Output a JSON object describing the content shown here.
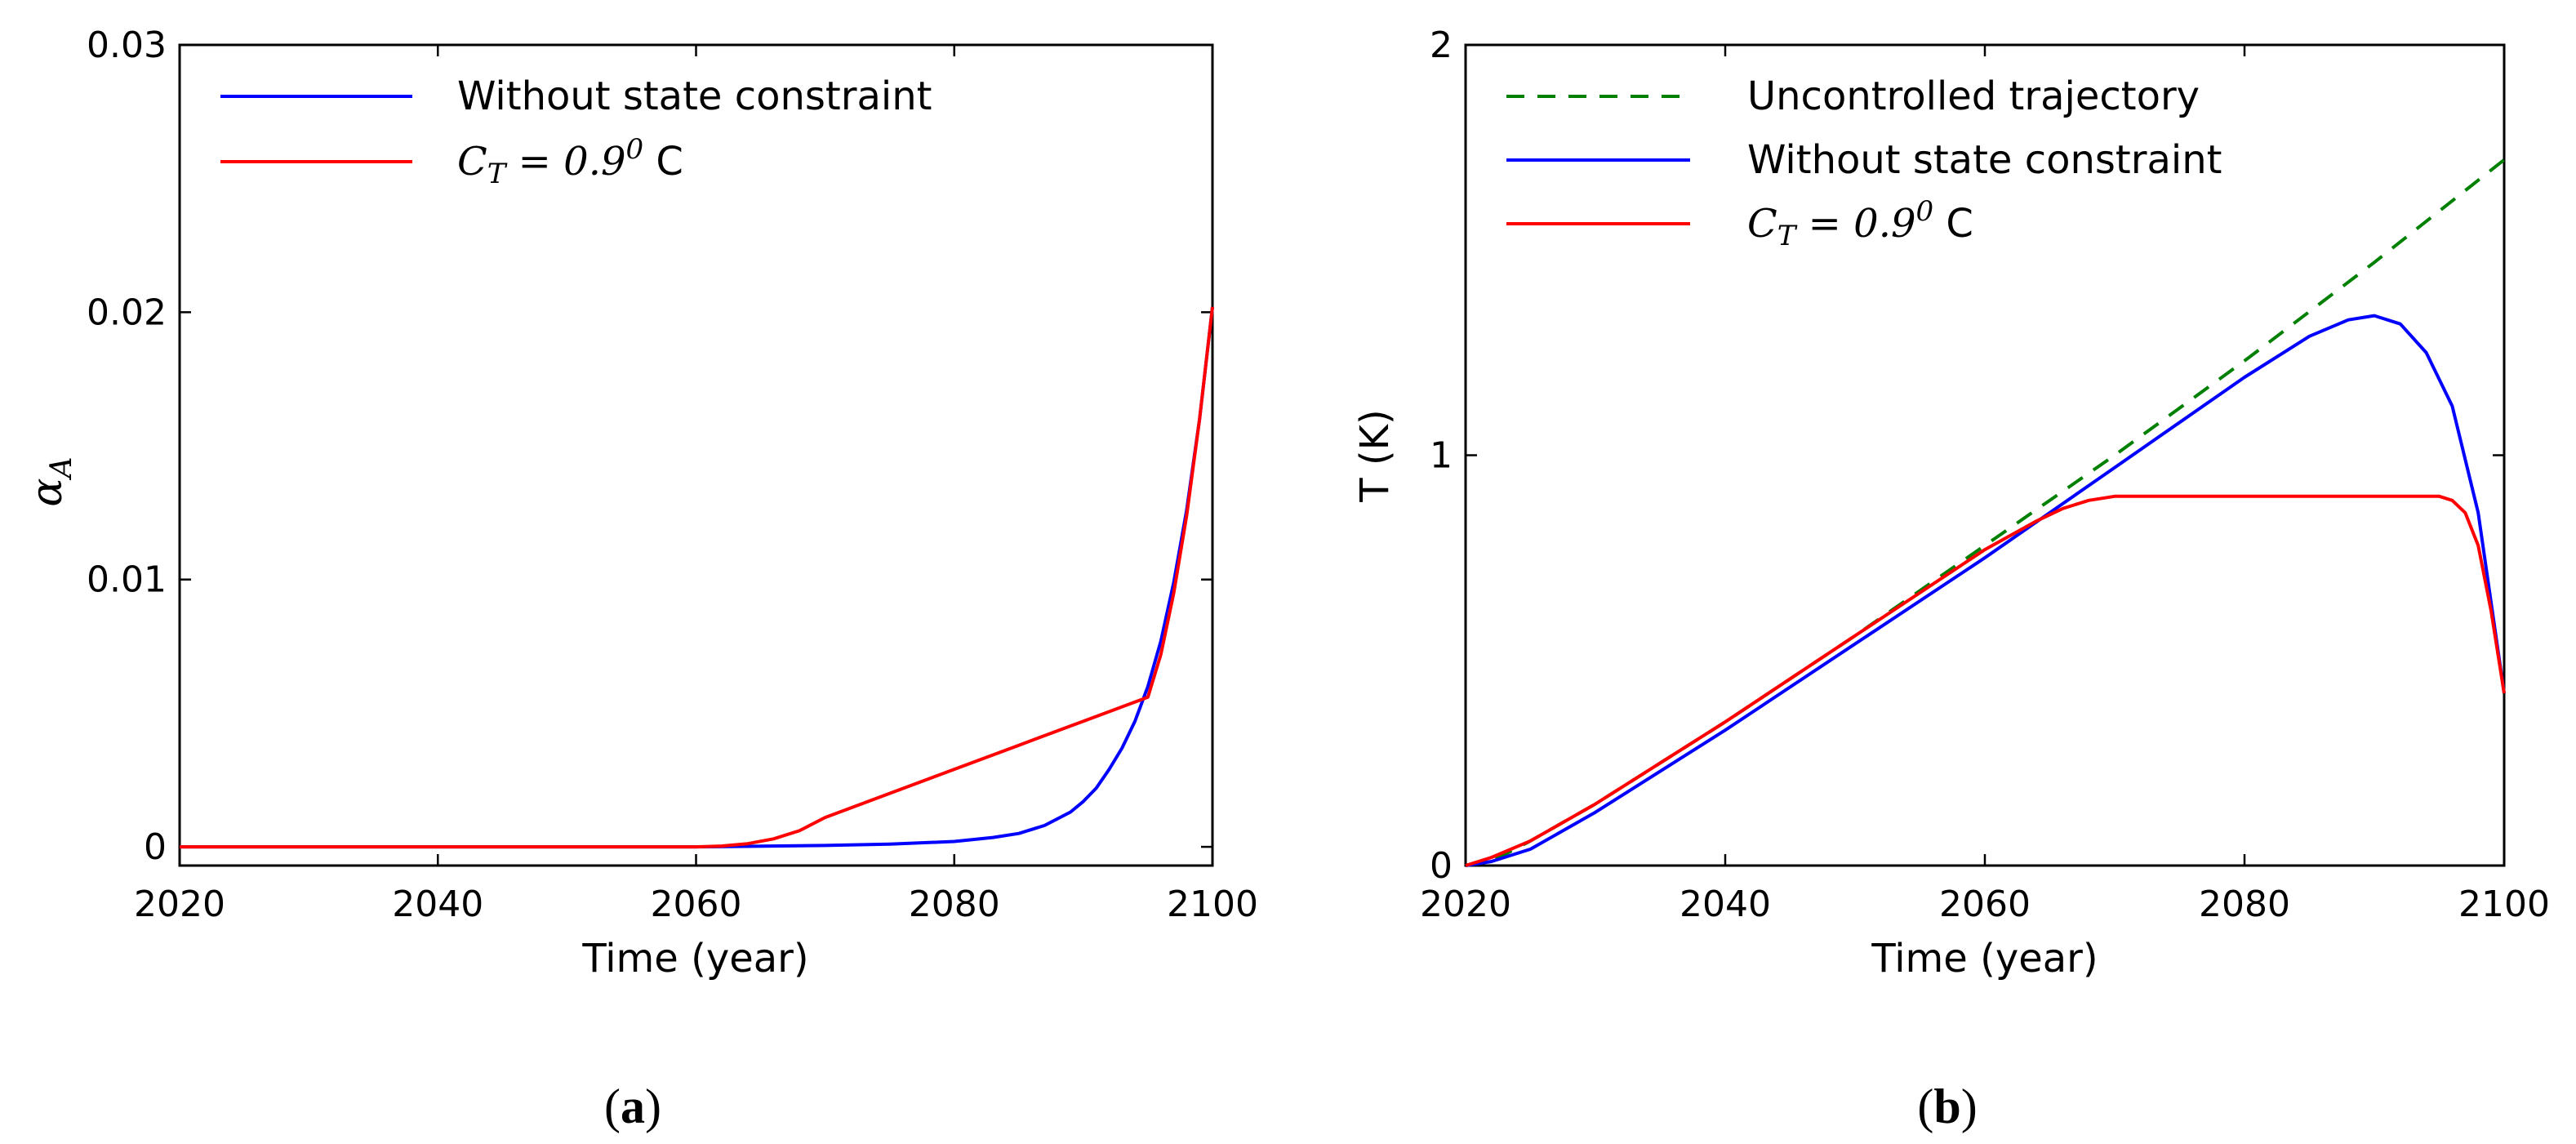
{
  "chart_data": [
    {
      "panel": "(a)",
      "panel_letter": "a",
      "type": "line",
      "title": "",
      "xlabel": "Time (year)",
      "ylabel_symbol": "α",
      "ylabel_subscript": "A",
      "xlim": [
        2020,
        2100
      ],
      "ylim": [
        -0.0007,
        0.03
      ],
      "xticks": [
        2020,
        2040,
        2060,
        2080,
        2100
      ],
      "xtick_labels": [
        "2020",
        "2040",
        "2060",
        "2080",
        "2100"
      ],
      "yticks": [
        0,
        0.01,
        0.02,
        0.03
      ],
      "ytick_labels": [
        "0",
        "0.01",
        "0.02",
        "0.03"
      ],
      "grid": false,
      "legend_position": "top-left",
      "series": [
        {
          "name": "Without state constraint",
          "color": "#0000ff",
          "dash": "solid",
          "x": [
            2020,
            2040,
            2060,
            2070,
            2075,
            2080,
            2083,
            2085,
            2087,
            2089,
            2090,
            2091,
            2092,
            2093,
            2094,
            2095,
            2096,
            2097,
            2098,
            2099,
            2100
          ],
          "y": [
            0,
            0,
            0,
            5e-05,
            0.0001,
            0.0002,
            0.00035,
            0.0005,
            0.0008,
            0.0013,
            0.0017,
            0.0022,
            0.0029,
            0.0037,
            0.0047,
            0.006,
            0.0077,
            0.0099,
            0.0126,
            0.016,
            0.0202
          ]
        },
        {
          "name": "C_T = 0.9^0 C",
          "label_math": "C",
          "label_sub": "T",
          "label_mid": " = 0.9",
          "label_sup": "0",
          "label_end": " C",
          "color": "#ff0000",
          "dash": "solid",
          "x": [
            2020,
            2040,
            2060,
            2062,
            2064,
            2066,
            2068,
            2070,
            2075,
            2080,
            2085,
            2090,
            2095,
            2096,
            2097,
            2098,
            2099,
            2100
          ],
          "y": [
            0,
            0,
            0,
            3e-05,
            0.00012,
            0.0003,
            0.0006,
            0.0011,
            0.002,
            0.0029,
            0.0038,
            0.0047,
            0.0056,
            0.0072,
            0.0095,
            0.0124,
            0.016,
            0.0202
          ]
        }
      ]
    },
    {
      "panel": "(b)",
      "panel_letter": "b",
      "type": "line",
      "title": "",
      "xlabel": "Time (year)",
      "ylabel": "T (K)",
      "xlim": [
        2020,
        2100
      ],
      "ylim": [
        0,
        2
      ],
      "xticks": [
        2020,
        2040,
        2060,
        2080,
        2100
      ],
      "xtick_labels": [
        "2020",
        "2040",
        "2060",
        "2080",
        "2100"
      ],
      "yticks": [
        0,
        1,
        2
      ],
      "ytick_labels": [
        "0",
        "1",
        "2"
      ],
      "grid": false,
      "legend_position": "top-left",
      "series": [
        {
          "name": "Uncontrolled trajectory",
          "color": "#008000",
          "dash": "dashed",
          "x": [
            2020,
            2022,
            2025,
            2030,
            2040,
            2050,
            2060,
            2070,
            2080,
            2090,
            2100
          ],
          "y": [
            0,
            0.01,
            0.06,
            0.15,
            0.35,
            0.56,
            0.78,
            1.0,
            1.23,
            1.47,
            1.72
          ]
        },
        {
          "name": "Without state constraint",
          "color": "#0000ff",
          "dash": "solid",
          "x": [
            2020,
            2022,
            2025,
            2030,
            2040,
            2050,
            2060,
            2070,
            2075,
            2080,
            2085,
            2088,
            2090,
            2092,
            2094,
            2096,
            2098,
            2100
          ],
          "y": [
            0,
            0.01,
            0.04,
            0.13,
            0.33,
            0.54,
            0.75,
            0.97,
            1.08,
            1.19,
            1.29,
            1.33,
            1.34,
            1.32,
            1.25,
            1.12,
            0.86,
            0.42
          ]
        },
        {
          "name": "C_T = 0.9^0 C",
          "label_math": "C",
          "label_sub": "T",
          "label_mid": " = 0.9",
          "label_sup": "0",
          "label_end": " C",
          "color": "#ff0000",
          "dash": "solid",
          "x": [
            2020,
            2022,
            2025,
            2030,
            2040,
            2050,
            2060,
            2064,
            2066,
            2068,
            2070,
            2080,
            2090,
            2095,
            2096,
            2097,
            2098,
            2099,
            2100
          ],
          "y": [
            0,
            0.02,
            0.06,
            0.15,
            0.35,
            0.56,
            0.77,
            0.84,
            0.87,
            0.89,
            0.9,
            0.9,
            0.9,
            0.9,
            0.89,
            0.86,
            0.78,
            0.62,
            0.42
          ]
        }
      ]
    }
  ]
}
